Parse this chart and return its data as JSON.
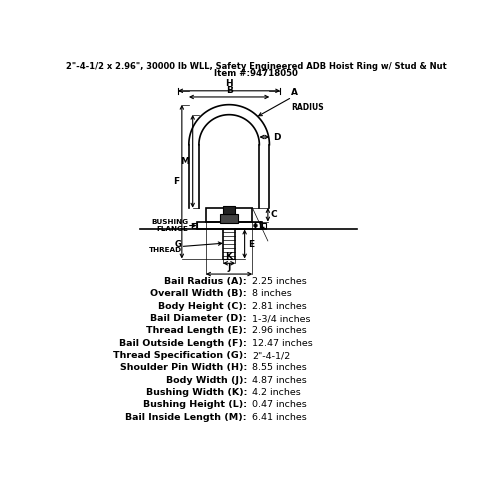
{
  "title_line1": "2\"-4-1/2 x 2.96\", 30000 lb WLL, Safety Engineered ADB Hoist Ring w/ Stud & Nut",
  "title_line2": "Item #:94718050",
  "specs": [
    [
      "Bail Radius (A):",
      "2.25 inches"
    ],
    [
      "Overall Width (B):",
      "8 inches"
    ],
    [
      "Body Height (C):",
      "2.81 inches"
    ],
    [
      "Bail Diameter (D):",
      "1-3/4 inches"
    ],
    [
      "Thread Length (E):",
      "2.96 inches"
    ],
    [
      "Bail Outside Length (F):",
      "12.47 inches"
    ],
    [
      "Thread Specification (G):",
      "2\"-4-1/2"
    ],
    [
      "Shoulder Pin Width (H):",
      "8.55 inches"
    ],
    [
      "Body Width (J):",
      "4.87 inches"
    ],
    [
      "Bushing Width (K):",
      "4.2 inches"
    ],
    [
      "Bushing Height (L):",
      "0.47 inches"
    ],
    [
      "Bail Inside Length (M):",
      "6.41 inches"
    ]
  ],
  "bg_color": "#ffffff",
  "text_color": "#000000",
  "diagram_color": "#000000"
}
